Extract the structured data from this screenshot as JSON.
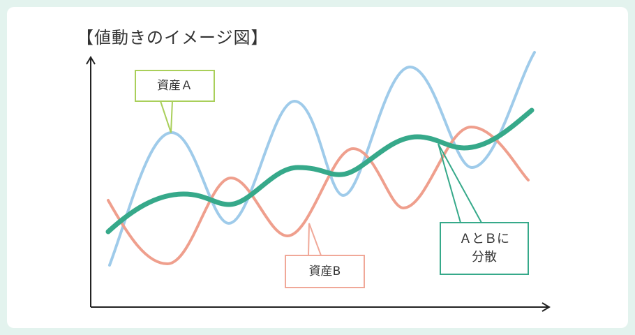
{
  "title": "【値動きのイメージ図】",
  "callouts": {
    "asset_a": "資産Ａ",
    "asset_b": "資産B",
    "diversified_line1": "ＡとＢに",
    "diversified_line2": "分散"
  },
  "colors": {
    "background": "#e3f3ee",
    "asset_a": "#9fcbea",
    "asset_b": "#ef9f8d",
    "diversified": "#36a98a",
    "callout_a_border": "#a9cf5a",
    "axis": "#222222"
  },
  "chart_data": {
    "type": "line",
    "title": "【値動きのイメージ図】",
    "xlabel": "",
    "ylabel": "",
    "x_ticks": false,
    "y_ticks": false,
    "grid": false,
    "series": [
      {
        "name": "資産Ａ",
        "shape": "oscillating-upward",
        "points": [
          [
            0,
            10
          ],
          [
            1.5,
            32
          ],
          [
            3,
            5
          ],
          [
            4.5,
            50
          ],
          [
            6,
            26
          ],
          [
            7.5,
            55
          ],
          [
            9,
            20
          ],
          [
            10.5,
            76
          ]
        ]
      },
      {
        "name": "資産B",
        "shape": "oscillating-opposite",
        "points": [
          [
            0,
            24
          ],
          [
            1.3,
            5
          ],
          [
            3,
            30
          ],
          [
            4.3,
            12
          ],
          [
            6,
            40
          ],
          [
            7.3,
            16
          ],
          [
            9,
            45
          ],
          [
            10.5,
            28
          ]
        ]
      },
      {
        "name": "ＡとＢに分散",
        "shape": "smooth-upward",
        "points": [
          [
            0,
            16
          ],
          [
            1.5,
            28
          ],
          [
            3,
            25
          ],
          [
            4.5,
            34
          ],
          [
            6,
            32
          ],
          [
            7.5,
            40
          ],
          [
            9,
            38
          ],
          [
            10.5,
            50
          ]
        ]
      }
    ]
  }
}
